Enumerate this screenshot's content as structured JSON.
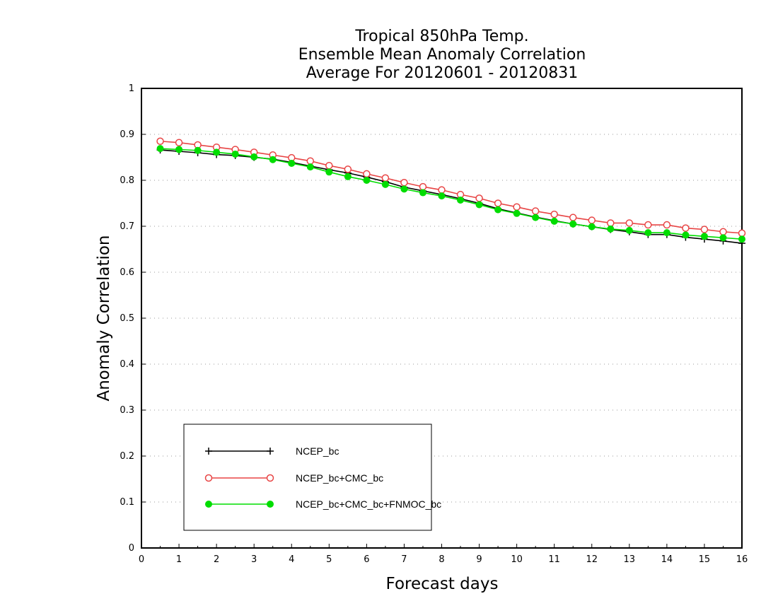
{
  "chart_data": {
    "type": "line",
    "title": [
      "Tropical 850hPa Temp.",
      "Ensemble Mean Anomaly Correlation",
      "Average For 20120601 - 20120831"
    ],
    "xlabel": "Forecast days",
    "ylabel": "Anomaly Correlation",
    "xlim": [
      0,
      16
    ],
    "ylim": [
      0,
      1
    ],
    "xticks": [
      "0",
      "1",
      "2",
      "3",
      "4",
      "5",
      "6",
      "7",
      "8",
      "9",
      "10",
      "11",
      "12",
      "13",
      "14",
      "15",
      "16"
    ],
    "yticks": [
      "0",
      "0.1",
      "0.2",
      "0.3",
      "0.4",
      "0.5",
      "0.6",
      "0.7",
      "0.8",
      "0.9",
      "1"
    ],
    "grid": true,
    "legend_position": "bottom-left",
    "x": [
      0.5,
      1,
      1.5,
      2,
      2.5,
      3,
      3.5,
      4,
      4.5,
      5,
      5.5,
      6,
      6.5,
      7,
      7.5,
      8,
      8.5,
      9,
      9.5,
      10,
      10.5,
      11,
      11.5,
      12,
      12.5,
      13,
      13.5,
      14,
      14.5,
      15,
      15.5,
      16
    ],
    "series": [
      {
        "name": "NCEP_bc",
        "color": "#000000",
        "marker": "plus",
        "values": [
          0.866,
          0.863,
          0.86,
          0.856,
          0.854,
          0.85,
          0.846,
          0.839,
          0.831,
          0.823,
          0.816,
          0.807,
          0.797,
          0.785,
          0.777,
          0.769,
          0.76,
          0.75,
          0.738,
          0.729,
          0.72,
          0.712,
          0.705,
          0.699,
          0.693,
          0.688,
          0.682,
          0.682,
          0.676,
          0.672,
          0.668,
          0.663
        ]
      },
      {
        "name": "NCEP_bc+CMC_bc",
        "color": "#e84545",
        "marker": "open-circle",
        "values": [
          0.885,
          0.882,
          0.877,
          0.872,
          0.867,
          0.861,
          0.855,
          0.849,
          0.842,
          0.832,
          0.824,
          0.814,
          0.805,
          0.795,
          0.786,
          0.779,
          0.769,
          0.761,
          0.75,
          0.742,
          0.733,
          0.726,
          0.719,
          0.713,
          0.707,
          0.707,
          0.703,
          0.703,
          0.696,
          0.693,
          0.688,
          0.685
        ]
      },
      {
        "name": "NCEP_bc+CMC_bc+FNMOC_bc",
        "color": "#00dd00",
        "marker": "filled-circle",
        "values": [
          0.869,
          0.867,
          0.865,
          0.861,
          0.857,
          0.851,
          0.845,
          0.837,
          0.829,
          0.818,
          0.808,
          0.8,
          0.791,
          0.781,
          0.773,
          0.766,
          0.757,
          0.747,
          0.736,
          0.728,
          0.719,
          0.711,
          0.705,
          0.699,
          0.694,
          0.691,
          0.686,
          0.686,
          0.681,
          0.678,
          0.675,
          0.672
        ]
      }
    ]
  }
}
